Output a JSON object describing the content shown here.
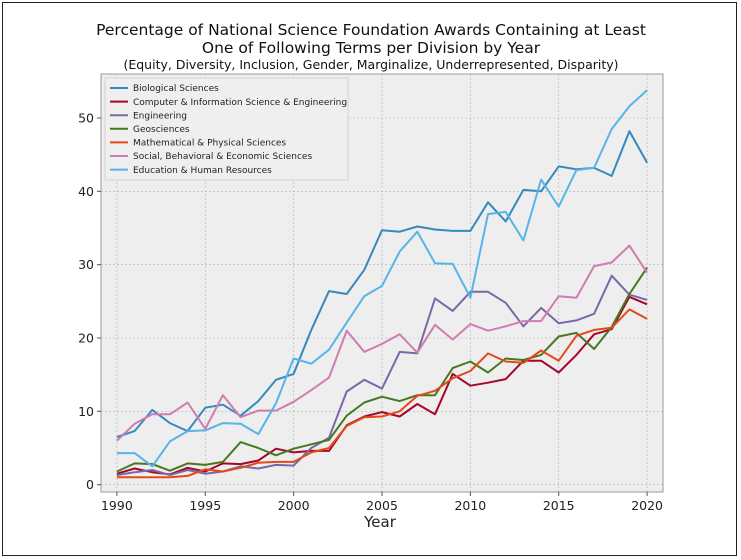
{
  "chart_data": {
    "type": "line",
    "title_lines": [
      "Percentage of National Science Foundation Awards Containing at Least",
      "One of Following Terms per Division by Year"
    ],
    "subtitle": "(Equity, Diversity, Inclusion, Gender, Marginalize, Underrepresented, Disparity)",
    "xlabel": "Year",
    "ylabel": "",
    "xlim": [
      1989.1,
      2020.9
    ],
    "ylim": [
      -1,
      56
    ],
    "xticks": [
      1990,
      1995,
      2000,
      2005,
      2010,
      2015,
      2020
    ],
    "yticks": [
      0,
      10,
      20,
      30,
      40,
      50
    ],
    "grid": true,
    "legend_position": "top-left",
    "x": [
      1990,
      1991,
      1992,
      1993,
      1994,
      1995,
      1996,
      1997,
      1998,
      1999,
      2000,
      2001,
      2002,
      2003,
      2004,
      2005,
      2006,
      2007,
      2008,
      2009,
      2010,
      2011,
      2012,
      2013,
      2014,
      2015,
      2016,
      2017,
      2018,
      2019,
      2020
    ],
    "series": [
      {
        "name": "Biological Sciences",
        "color": "#348ABD",
        "values": [
          6.5,
          7.3,
          10.2,
          8.4,
          7.3,
          10.5,
          10.9,
          9.4,
          11.4,
          14.3,
          15.1,
          21.1,
          26.4,
          26.0,
          29.3,
          34.7,
          34.5,
          35.2,
          34.8,
          34.6,
          34.6,
          38.5,
          35.9,
          40.2,
          40.0,
          43.4,
          43.0,
          43.2,
          42.1,
          48.2,
          43.9
        ]
      },
      {
        "name": "Computer & Information Science & Engineering",
        "color": "#A60628",
        "values": [
          1.5,
          2.2,
          1.7,
          1.4,
          2.3,
          1.8,
          2.9,
          2.8,
          3.3,
          4.9,
          4.4,
          4.6,
          4.6,
          8.1,
          9.3,
          9.9,
          9.3,
          11.0,
          9.6,
          15.1,
          13.5,
          13.9,
          14.4,
          16.9,
          16.9,
          15.3,
          17.7,
          20.5,
          21.2,
          25.6,
          24.6
        ]
      },
      {
        "name": "Engineering",
        "color": "#7A68A6",
        "values": [
          1.3,
          1.7,
          2.0,
          1.3,
          2.0,
          1.5,
          1.8,
          2.5,
          2.2,
          2.7,
          2.6,
          5.0,
          6.4,
          12.7,
          14.3,
          13.1,
          18.1,
          17.9,
          25.4,
          23.7,
          26.3,
          26.3,
          24.8,
          21.6,
          24.1,
          22.0,
          22.4,
          23.3,
          28.5,
          25.9,
          25.2
        ]
      },
      {
        "name": "Geosciences",
        "color": "#467821",
        "values": [
          1.8,
          2.9,
          2.8,
          1.9,
          2.9,
          2.7,
          3.1,
          5.8,
          5.0,
          4.0,
          4.9,
          5.5,
          6.1,
          9.4,
          11.2,
          12.0,
          11.4,
          12.2,
          12.2,
          15.9,
          16.8,
          15.3,
          17.2,
          17.0,
          17.7,
          20.2,
          20.7,
          18.5,
          21.5,
          26.0,
          29.6
        ]
      },
      {
        "name": "Mathematical & Physical Sciences",
        "color": "#E24A1A",
        "values": [
          1.0,
          1.0,
          1.0,
          1.0,
          1.2,
          2.1,
          1.8,
          2.3,
          3.0,
          3.1,
          3.1,
          4.4,
          5.0,
          8.0,
          9.2,
          9.3,
          10.0,
          12.1,
          12.8,
          14.5,
          15.5,
          17.9,
          16.8,
          16.6,
          18.3,
          16.9,
          20.3,
          21.1,
          21.4,
          23.9,
          22.6
        ]
      },
      {
        "name": "Social, Behavioral & Economic Sciences",
        "color": "#D07CB0",
        "values": [
          6.0,
          8.3,
          9.6,
          9.6,
          11.2,
          7.6,
          12.2,
          9.2,
          10.1,
          10.1,
          11.3,
          12.9,
          14.6,
          21.0,
          18.1,
          19.2,
          20.5,
          18.0,
          21.8,
          19.8,
          21.9,
          21.0,
          21.6,
          22.3,
          22.3,
          25.7,
          25.5,
          29.8,
          30.3,
          32.6,
          28.9
        ]
      },
      {
        "name": "Education & Human Resources",
        "color": "#56B4E9",
        "values": [
          4.3,
          4.3,
          2.5,
          5.9,
          7.3,
          7.4,
          8.4,
          8.3,
          6.9,
          11.1,
          17.2,
          16.5,
          18.4,
          22.1,
          25.7,
          27.1,
          31.8,
          34.5,
          30.2,
          30.1,
          25.5,
          36.9,
          37.2,
          33.3,
          41.6,
          37.9,
          42.9,
          43.2,
          48.5,
          51.6,
          53.8
        ]
      }
    ]
  }
}
